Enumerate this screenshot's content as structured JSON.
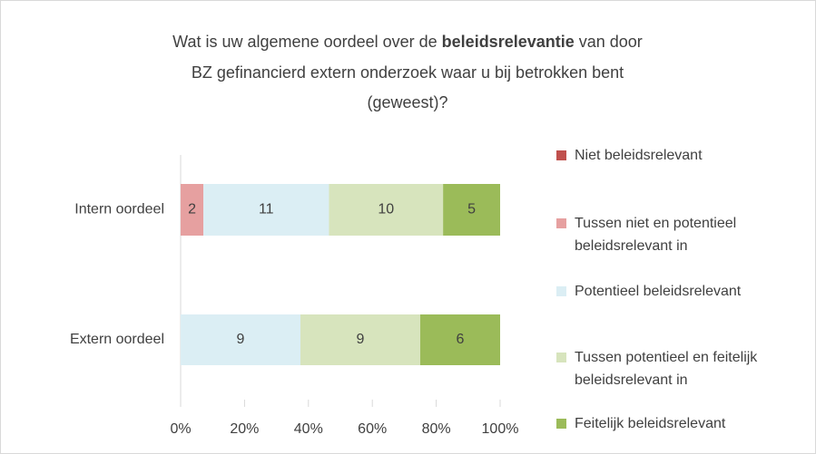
{
  "chart_data": {
    "type": "bar",
    "orientation": "horizontal",
    "stacked": "percent",
    "title": [
      [
        "Wat is uw algemene oordeel over de ",
        "beleidsrelevantie",
        " van door"
      ],
      [
        "BZ gefinancierd extern onderzoek waar u bij betrokken bent"
      ],
      [
        "(geweest)?"
      ]
    ],
    "categories": [
      "Intern oordeel",
      "Extern oordeel"
    ],
    "series": [
      {
        "name": "Niet beleidsrelevant",
        "color": "#c0504d",
        "values": [
          0,
          0
        ]
      },
      {
        "name": "Tussen niet en potentieel beleidsrelevant in",
        "color": "#e6a0a0",
        "values": [
          2,
          0
        ]
      },
      {
        "name": "Potentieel beleidsrelevant",
        "color": "#dbeef4",
        "values": [
          11,
          9
        ]
      },
      {
        "name": "Tussen potentieel en feitelijk beleidsrelevant in",
        "color": "#d7e4bd",
        "values": [
          10,
          9
        ]
      },
      {
        "name": "Feitelijk beleidsrelevant",
        "color": "#9bbb59",
        "values": [
          5,
          6
        ]
      }
    ],
    "xlim": [
      0,
      100
    ],
    "xticks": [
      {
        "value": 0,
        "label": "0%"
      },
      {
        "value": 20,
        "label": "20%"
      },
      {
        "value": 40,
        "label": "40%"
      },
      {
        "value": 60,
        "label": "60%"
      },
      {
        "value": 80,
        "label": "80%"
      },
      {
        "value": 100,
        "label": "100%"
      }
    ],
    "legend": "right"
  }
}
